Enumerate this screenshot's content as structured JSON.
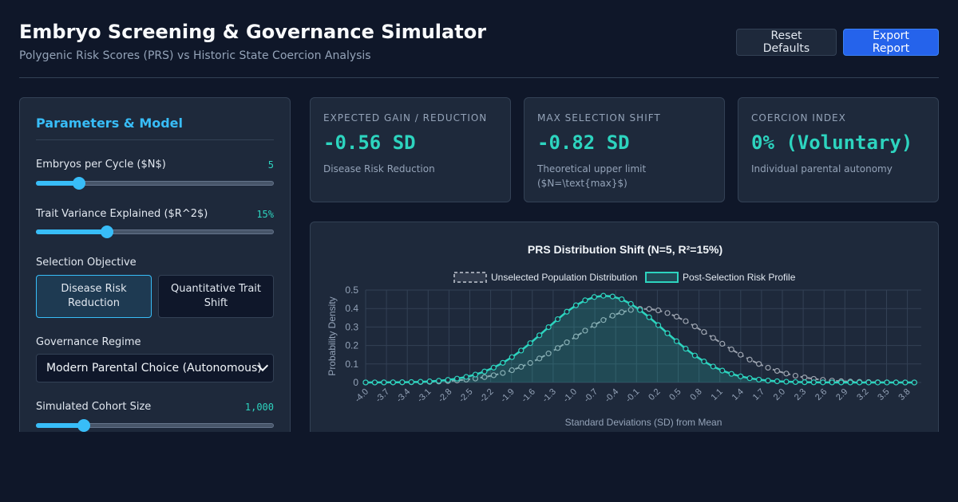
{
  "header": {
    "title": "Embryo Screening & Governance Simulator",
    "subtitle": "Polygenic Risk Scores (PRS) vs Historic State Coercion Analysis",
    "reset_label": "Reset Defaults",
    "export_label": "Export Report"
  },
  "panel": {
    "title": "Parameters & Model",
    "embryos": {
      "label": "Embryos per Cycle ($N$)",
      "value": "5",
      "fraction": 0.18
    },
    "variance": {
      "label": "Trait Variance Explained ($R^2$)",
      "value": "15%",
      "fraction": 0.3
    },
    "objective": {
      "label": "Selection Objective",
      "options": [
        "Disease Risk Reduction",
        "Quantitative Trait Shift"
      ],
      "selected": "Disease Risk Reduction"
    },
    "governance": {
      "label": "Governance Regime",
      "selected": "Modern Parental Choice (Autonomous)"
    },
    "cohort": {
      "label": "Simulated Cohort Size",
      "value": "1,000",
      "fraction": 0.2
    }
  },
  "cards": [
    {
      "label": "EXPECTED GAIN / REDUCTION",
      "value": "-0.56 SD",
      "note": "Disease Risk Reduction"
    },
    {
      "label": "MAX SELECTION SHIFT",
      "value": "-0.82 SD",
      "note": "Theoretical upper limit ($N=\\text{max}$)"
    },
    {
      "label": "COERCION INDEX",
      "value": "0% (Voluntary)",
      "note": "Individual parental autonomy"
    }
  ],
  "colors": {
    "accent": "#38bdf8",
    "teal": "#2dd4bf",
    "unselected": "#9ca3af"
  },
  "chart_data": {
    "type": "line",
    "title": "PRS Distribution Shift (N=5, R²=15%)",
    "xlabel": "Standard Deviations (SD) from Mean",
    "ylabel": "Probability Density",
    "ylim": [
      0,
      0.5
    ],
    "yticks": [
      "0",
      "0.1",
      "0.2",
      "0.3",
      "0.4",
      "0.5"
    ],
    "xlim": [
      -4.0,
      4.0
    ],
    "xtick_labels": [
      "-4.0",
      "-3.7",
      "-3.4",
      "-3.1",
      "-2.8",
      "-2.5",
      "-2.2",
      "-1.9",
      "-1.6",
      "-1.3",
      "-1.0",
      "-0.7",
      "-0.4",
      "-0.1",
      "0.2",
      "0.5",
      "0.8",
      "1.1",
      "1.4",
      "1.7",
      "2.0",
      "2.3",
      "2.6",
      "2.9",
      "3.2",
      "3.5",
      "3.8"
    ],
    "grid": true,
    "legend": "top-center",
    "series": [
      {
        "name": "Unselected Population Distribution",
        "mean": 0.0,
        "sd": 1.0,
        "color": "#9ca3af",
        "style": "dashed"
      },
      {
        "name": "Post-Selection Risk Profile",
        "mean": -0.56,
        "sd": 0.85,
        "color": "#2dd4bf",
        "style": "solid-fill"
      }
    ]
  }
}
